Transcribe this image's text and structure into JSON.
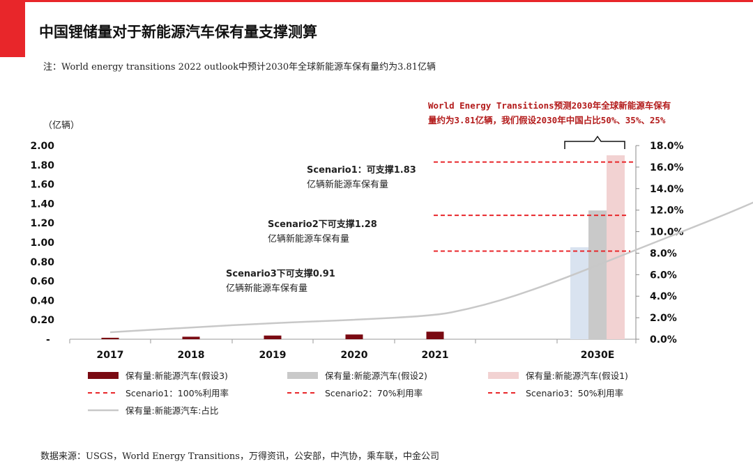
{
  "title": "中国锂储量对于新能源汽车保有量支撑测算",
  "note": "注：World energy transitions 2022 outlook中预计2030年全球新能源车保有量约为3.81亿辆",
  "source": "数据来源：USGS，World Energy Transitions，万得资讯，公安部，中汽协，乘车联，中金公司",
  "colors": {
    "accent": "#e8262a",
    "scenario3_bar": "#7a0a12",
    "scenario2_bar": "#c9c9c9",
    "scenario1_bar": "#f2d2d2",
    "scenario3_2030_bar": "#d9e3f0",
    "dashed_line": "#e8262a",
    "share_line": "#c8c8c8",
    "callout_text": "#b31b1b"
  },
  "chart_data": {
    "type": "bar",
    "categories": [
      "2017",
      "2018",
      "2019",
      "2020",
      "2021",
      "2030E"
    ],
    "left_axis": {
      "unit_label": "（亿辆）",
      "ylim": [
        0,
        2.0
      ],
      "ticks": [
        "-",
        "0.20",
        "0.40",
        "0.60",
        "0.80",
        "1.00",
        "1.20",
        "1.40",
        "1.60",
        "1.80",
        "2.00"
      ]
    },
    "right_axis": {
      "ylim": [
        0,
        18
      ],
      "ticks": [
        "0.0%",
        "2.0%",
        "4.0%",
        "6.0%",
        "8.0%",
        "10.0%",
        "12.0%",
        "14.0%",
        "16.0%",
        "18.0%"
      ]
    },
    "series": [
      {
        "name": "保有量:新能源汽车(假设3)",
        "type": "bar",
        "values": [
          0.015,
          0.026,
          0.038,
          0.049,
          0.078,
          0.95
        ]
      },
      {
        "name": "保有量:新能源汽车(假设2)",
        "type": "bar",
        "values": [
          null,
          null,
          null,
          null,
          null,
          1.33
        ]
      },
      {
        "name": "保有量:新能源汽车(假设1)",
        "type": "bar",
        "values": [
          null,
          null,
          null,
          null,
          null,
          1.9
        ]
      },
      {
        "name": "保有量:新能源汽车:占比",
        "type": "line",
        "axis": "right",
        "x": [
          0,
          1,
          2,
          3,
          4,
          4.4,
          4.8,
          5.2,
          5.6,
          6.0,
          6.4,
          6.8,
          7.2,
          7.6,
          8.0,
          8.4,
          8.8,
          9.1
        ],
        "values": [
          0.65,
          1.1,
          1.5,
          1.8,
          2.2,
          2.8,
          3.6,
          4.6,
          5.7,
          6.9,
          8.1,
          9.3,
          10.5,
          11.7,
          13.0,
          14.4,
          16.0,
          17.2
        ]
      }
    ],
    "reference_lines": [
      {
        "name": "Scenario1：100%利用率",
        "value": 1.83
      },
      {
        "name": "Scenario2：70%利用率",
        "value": 1.28
      },
      {
        "name": "Scenario3：50%利用率",
        "value": 0.91
      }
    ],
    "annotations": [
      {
        "lines": [
          "Scenario1：可支撑1.83",
          "亿辆新能源车保有量"
        ]
      },
      {
        "lines": [
          "Scenario2下可支撑1.28",
          "亿辆新能源车保有量"
        ]
      },
      {
        "lines": [
          "Scenario3下可支撑0.91",
          "亿辆新能源车保有量"
        ]
      }
    ],
    "callout": {
      "lines": [
        "World Energy Transitions预测2030年全球新能源车保有",
        "量约为3.81亿辆，我们假设2030年中国占比50%、35%、25%"
      ]
    }
  }
}
